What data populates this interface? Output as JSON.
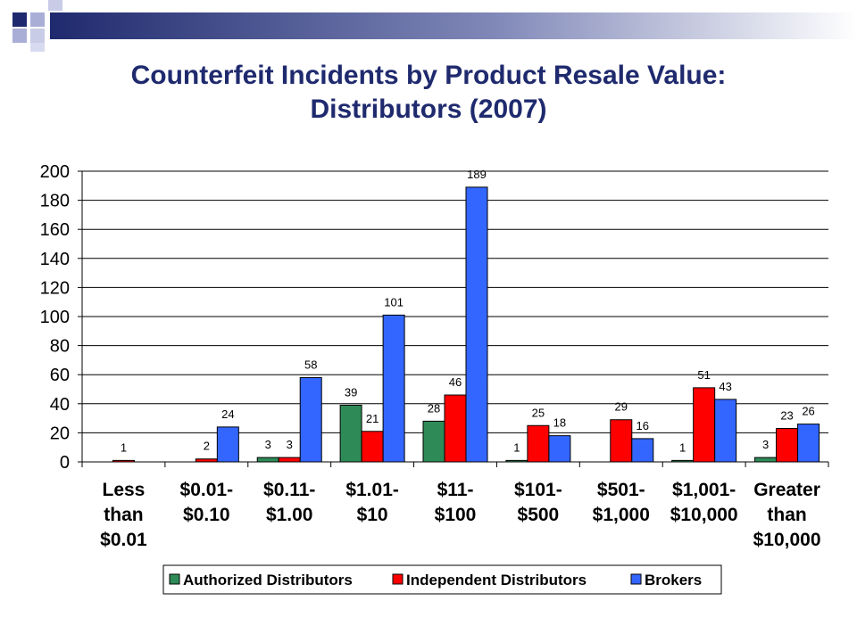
{
  "slide": {
    "title_line1": "Counterfeit Incidents by Product Resale Value:",
    "title_line2": "Distributors (2007)",
    "accent_color": "#1f2a6e"
  },
  "chart_data": {
    "type": "bar",
    "categories": [
      [
        "Less",
        "than",
        "$0.01"
      ],
      [
        "$0.01-",
        "$0.10"
      ],
      [
        "$0.11-",
        "$1.00"
      ],
      [
        "$1.01-",
        "$10"
      ],
      [
        "$11-",
        "$100"
      ],
      [
        "$101-",
        "$500"
      ],
      [
        "$501-",
        "$1,000"
      ],
      [
        "$1,001-",
        "$10,000"
      ],
      [
        "Greater",
        "than",
        "$10,000"
      ]
    ],
    "series": [
      {
        "name": "Authorized Distributors",
        "color": "#2e8b57",
        "values": [
          null,
          null,
          3,
          39,
          28,
          1,
          null,
          1,
          3
        ]
      },
      {
        "name": "Independent Distributors",
        "color": "#ff0000",
        "values": [
          1,
          2,
          3,
          21,
          46,
          25,
          29,
          51,
          23
        ]
      },
      {
        "name": "Brokers",
        "color": "#3366ff",
        "values": [
          null,
          24,
          58,
          101,
          189,
          18,
          16,
          43,
          26
        ]
      }
    ],
    "ylim": [
      0,
      200
    ],
    "yticks": [
      0,
      20,
      40,
      60,
      80,
      100,
      120,
      140,
      160,
      180,
      200
    ],
    "grid": true,
    "legend": "bottom",
    "data_labels": true
  }
}
